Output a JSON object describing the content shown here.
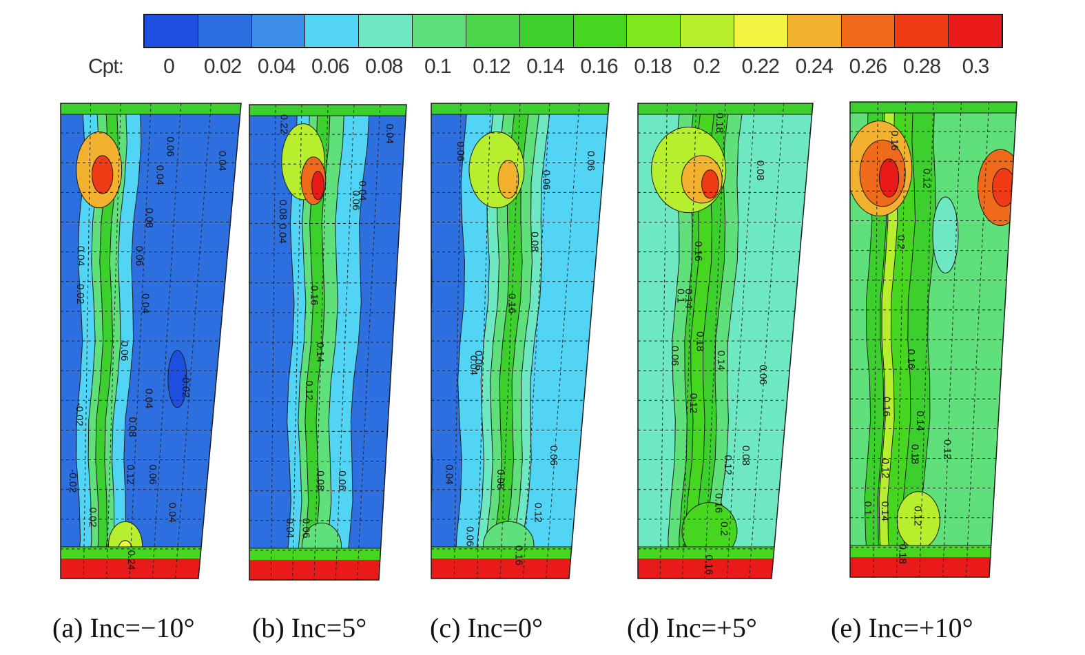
{
  "colorbar": {
    "label": "Cpt:",
    "ticks": [
      "0",
      "0.02",
      "0.04",
      "0.06",
      "0.08",
      "0.1",
      "0.12",
      "0.14",
      "0.16",
      "0.18",
      "0.2",
      "0.22",
      "0.24",
      "0.26",
      "0.28",
      "0.3"
    ],
    "colors": [
      "#1f4fe0",
      "#2e6fe0",
      "#3b8de6",
      "#52d4f5",
      "#6ee8c2",
      "#5fe07a",
      "#4cd64a",
      "#3ccf2e",
      "#47d620",
      "#7fe81c",
      "#b7ef2e",
      "#f1f542",
      "#f2b12e",
      "#f06a1c",
      "#ee3b15",
      "#e81a1a"
    ]
  },
  "chart_data": {
    "type": "heatmap",
    "variable": "Cpt",
    "range": [
      0,
      0.3
    ],
    "panels": [
      {
        "caption": "(a) Inc=−10°",
        "background": "#2e6fe0",
        "bands": [
          {
            "center": 0.28,
            "width": 0.32,
            "color": "#52d4f5"
          },
          {
            "center": 0.28,
            "width": 0.16,
            "color": "#5fe07a"
          },
          {
            "center": 0.28,
            "width": 0.06,
            "color": "#3ccf2e"
          }
        ],
        "spots": [
          {
            "cx": 0.22,
            "cy": 0.14,
            "rx": 0.13,
            "ry": 0.08,
            "color": "#f2b12e"
          },
          {
            "cx": 0.24,
            "cy": 0.15,
            "rx": 0.06,
            "ry": 0.04,
            "color": "#ee3b15"
          },
          {
            "cx": 0.46,
            "cy": 0.93,
            "rx": 0.12,
            "ry": 0.05,
            "color": "#b7ef2e"
          },
          {
            "cx": 0.46,
            "cy": 0.94,
            "rx": 0.05,
            "ry": 0.02,
            "color": "#f1f542"
          },
          {
            "cx": 0.75,
            "cy": 0.58,
            "rx": 0.06,
            "ry": 0.06,
            "color": "#1f4fe0"
          }
        ],
        "labels": [
          {
            "text": "0.06",
            "x": 0.6,
            "y": 0.07
          },
          {
            "text": "0.04",
            "x": 0.55,
            "y": 0.13
          },
          {
            "text": "0.04",
            "x": 0.9,
            "y": 0.1
          },
          {
            "text": "0.08",
            "x": 0.5,
            "y": 0.22
          },
          {
            "text": "0.06",
            "x": 0.45,
            "y": 0.3
          },
          {
            "text": "0.04",
            "x": 0.5,
            "y": 0.4
          },
          {
            "text": "0.04",
            "x": 0.1,
            "y": 0.3
          },
          {
            "text": "0.02",
            "x": 0.1,
            "y": 0.38
          },
          {
            "text": "0.06",
            "x": 0.38,
            "y": 0.5
          },
          {
            "text": "0.04",
            "x": 0.55,
            "y": 0.6
          },
          {
            "text": "-0.02",
            "x": 0.78,
            "y": 0.57
          },
          {
            "text": "-0.02",
            "x": 0.1,
            "y": 0.63
          },
          {
            "text": "0.08",
            "x": 0.45,
            "y": 0.66
          },
          {
            "text": "0.12",
            "x": 0.45,
            "y": 0.76
          },
          {
            "text": "0.06",
            "x": 0.6,
            "y": 0.76
          },
          {
            "text": "-0.02",
            "x": 0.06,
            "y": 0.77
          },
          {
            "text": "0.02",
            "x": 0.2,
            "y": 0.85
          },
          {
            "text": "0.04",
            "x": 0.75,
            "y": 0.84
          },
          {
            "text": "0.24",
            "x": 0.48,
            "y": 0.94
          }
        ]
      },
      {
        "caption": "(b) Inc=5°",
        "background": "#2e6fe0",
        "bands": [
          {
            "center": 0.52,
            "width": 0.46,
            "color": "#52d4f5"
          },
          {
            "center": 0.48,
            "width": 0.22,
            "color": "#5fe07a"
          },
          {
            "center": 0.46,
            "width": 0.08,
            "color": "#3ccf2e"
          }
        ],
        "spots": [
          {
            "cx": 0.35,
            "cy": 0.12,
            "rx": 0.14,
            "ry": 0.08,
            "color": "#b7ef2e"
          },
          {
            "cx": 0.42,
            "cy": 0.16,
            "rx": 0.08,
            "ry": 0.05,
            "color": "#f06a1c"
          },
          {
            "cx": 0.45,
            "cy": 0.17,
            "rx": 0.04,
            "ry": 0.03,
            "color": "#e81a1a"
          },
          {
            "cx": 0.55,
            "cy": 0.93,
            "rx": 0.15,
            "ry": 0.05,
            "color": "#5fe07a"
          }
        ],
        "labels": [
          {
            "text": "0.22",
            "x": 0.2,
            "y": 0.02
          },
          {
            "text": "0.04",
            "x": 0.88,
            "y": 0.04
          },
          {
            "text": "0.06",
            "x": 0.68,
            "y": 0.18
          },
          {
            "text": "0.04",
            "x": 0.72,
            "y": 0.16
          },
          {
            "text": "0.08",
            "x": 0.2,
            "y": 0.2
          },
          {
            "text": "0.04",
            "x": 0.2,
            "y": 0.25
          },
          {
            "text": "0.16",
            "x": 0.42,
            "y": 0.38
          },
          {
            "text": "0.14",
            "x": 0.47,
            "y": 0.5
          },
          {
            "text": "0.12",
            "x": 0.4,
            "y": 0.58
          },
          {
            "text": "0.08",
            "x": 0.5,
            "y": 0.77
          },
          {
            "text": "0.06",
            "x": 0.4,
            "y": 0.87
          },
          {
            "text": "0.04",
            "x": 0.28,
            "y": 0.87
          },
          {
            "text": "0.06",
            "x": 0.66,
            "y": 0.77
          }
        ]
      },
      {
        "caption": "(c) Inc=0°",
        "background": "#52d4f5",
        "bands": [
          {
            "center": 0.09,
            "width": 0.2,
            "color": "#2e6fe0"
          },
          {
            "center": 0.5,
            "width": 0.32,
            "color": "#6ee8c2"
          },
          {
            "center": 0.5,
            "width": 0.2,
            "color": "#5fe07a"
          },
          {
            "center": 0.5,
            "width": 0.08,
            "color": "#3ccf2e"
          }
        ],
        "spots": [
          {
            "cx": 0.38,
            "cy": 0.14,
            "rx": 0.16,
            "ry": 0.08,
            "color": "#b7ef2e"
          },
          {
            "cx": 0.45,
            "cy": 0.16,
            "rx": 0.06,
            "ry": 0.04,
            "color": "#f2b12e"
          },
          {
            "cx": 0.55,
            "cy": 0.93,
            "rx": 0.18,
            "ry": 0.05,
            "color": "#5fe07a"
          }
        ],
        "labels": [
          {
            "text": "0.06",
            "x": 0.15,
            "y": 0.08
          },
          {
            "text": "0.06",
            "x": 0.65,
            "y": 0.14
          },
          {
            "text": "0.06",
            "x": 0.9,
            "y": 0.1
          },
          {
            "text": "0.08",
            "x": 0.6,
            "y": 0.27
          },
          {
            "text": "0.16",
            "x": 0.48,
            "y": 0.4
          },
          {
            "text": "0.06",
            "x": 0.28,
            "y": 0.52
          },
          {
            "text": "0.04",
            "x": 0.25,
            "y": 0.53
          },
          {
            "text": "0.06",
            "x": 0.8,
            "y": 0.72
          },
          {
            "text": "0.04",
            "x": 0.1,
            "y": 0.76
          },
          {
            "text": "0.08",
            "x": 0.45,
            "y": 0.77
          },
          {
            "text": "0.12",
            "x": 0.72,
            "y": 0.84
          },
          {
            "text": "0.06",
            "x": 0.25,
            "y": 0.89
          },
          {
            "text": "0.16",
            "x": 0.6,
            "y": 0.93
          }
        ]
      },
      {
        "caption": "(d) Inc=+5°",
        "background": "#6ee8c2",
        "bands": [
          {
            "center": 0.42,
            "width": 0.36,
            "color": "#5fe07a"
          },
          {
            "center": 0.42,
            "width": 0.2,
            "color": "#3ccf2e"
          },
          {
            "center": 0.4,
            "width": 0.08,
            "color": "#47d620"
          }
        ],
        "spots": [
          {
            "cx": 0.3,
            "cy": 0.14,
            "rx": 0.22,
            "ry": 0.09,
            "color": "#b7ef2e"
          },
          {
            "cx": 0.38,
            "cy": 0.16,
            "rx": 0.12,
            "ry": 0.05,
            "color": "#f2b12e"
          },
          {
            "cx": 0.43,
            "cy": 0.17,
            "rx": 0.05,
            "ry": 0.03,
            "color": "#ee3b15"
          },
          {
            "cx": 0.52,
            "cy": 0.9,
            "rx": 0.2,
            "ry": 0.06,
            "color": "#47d620"
          }
        ],
        "labels": [
          {
            "text": "0.18",
            "x": 0.45,
            "y": 0.02
          },
          {
            "text": "0.08",
            "x": 0.7,
            "y": 0.12
          },
          {
            "text": "0.16",
            "x": 0.35,
            "y": 0.29
          },
          {
            "text": "0.14",
            "x": 0.3,
            "y": 0.39
          },
          {
            "text": "0.1",
            "x": 0.25,
            "y": 0.39
          },
          {
            "text": "0.18",
            "x": 0.38,
            "y": 0.48
          },
          {
            "text": "0.14",
            "x": 0.52,
            "y": 0.52
          },
          {
            "text": "0.06",
            "x": 0.22,
            "y": 0.51
          },
          {
            "text": "0.06",
            "x": 0.8,
            "y": 0.55
          },
          {
            "text": "0.12",
            "x": 0.35,
            "y": 0.61
          },
          {
            "text": "0.08",
            "x": 0.72,
            "y": 0.72
          },
          {
            "text": "0.12",
            "x": 0.6,
            "y": 0.74
          },
          {
            "text": "0.16",
            "x": 0.55,
            "y": 0.82
          },
          {
            "text": "0.2",
            "x": 0.6,
            "y": 0.88
          },
          {
            "text": "0.16",
            "x": 0.5,
            "y": 0.95
          }
        ]
      },
      {
        "caption": "(e) Inc=+10°",
        "background": "#5fe07a",
        "bands": [
          {
            "center": 0.32,
            "width": 0.4,
            "color": "#3ccf2e"
          },
          {
            "center": 0.3,
            "width": 0.18,
            "color": "#47d620"
          },
          {
            "center": 0.25,
            "width": 0.06,
            "color": "#b7ef2e"
          }
        ],
        "spots": [
          {
            "cx": 0.18,
            "cy": 0.14,
            "rx": 0.2,
            "ry": 0.1,
            "color": "#f2b12e"
          },
          {
            "cx": 0.2,
            "cy": 0.15,
            "rx": 0.14,
            "ry": 0.07,
            "color": "#f06a1c"
          },
          {
            "cx": 0.24,
            "cy": 0.16,
            "rx": 0.06,
            "ry": 0.04,
            "color": "#e81a1a"
          },
          {
            "cx": 0.93,
            "cy": 0.18,
            "rx": 0.14,
            "ry": 0.08,
            "color": "#f06a1c"
          },
          {
            "cx": 0.95,
            "cy": 0.18,
            "rx": 0.07,
            "ry": 0.04,
            "color": "#ee3b15"
          },
          {
            "cx": 0.6,
            "cy": 0.28,
            "rx": 0.08,
            "ry": 0.08,
            "color": "#6ee8c2"
          },
          {
            "cx": 0.48,
            "cy": 0.88,
            "rx": 0.15,
            "ry": 0.06,
            "color": "#b7ef2e"
          }
        ],
        "labels": [
          {
            "text": "0.12",
            "x": 0.45,
            "y": 0.14
          },
          {
            "text": "0.16",
            "x": 0.25,
            "y": 0.06
          },
          {
            "text": "0.2",
            "x": 0.3,
            "y": 0.28
          },
          {
            "text": "0.16",
            "x": 0.38,
            "y": 0.52
          },
          {
            "text": "0.16",
            "x": 0.22,
            "y": 0.62
          },
          {
            "text": "0.14",
            "x": 0.45,
            "y": 0.65
          },
          {
            "text": "0.12",
            "x": 0.64,
            "y": 0.71
          },
          {
            "text": "0.18",
            "x": 0.42,
            "y": 0.72
          },
          {
            "text": "0.12",
            "x": 0.22,
            "y": 0.75
          },
          {
            "text": "0.1",
            "x": 0.1,
            "y": 0.84
          },
          {
            "text": "0.14",
            "x": 0.22,
            "y": 0.84
          },
          {
            "text": "0.12",
            "x": 0.45,
            "y": 0.85
          },
          {
            "text": "0.18",
            "x": 0.35,
            "y": 0.93
          }
        ]
      }
    ]
  }
}
